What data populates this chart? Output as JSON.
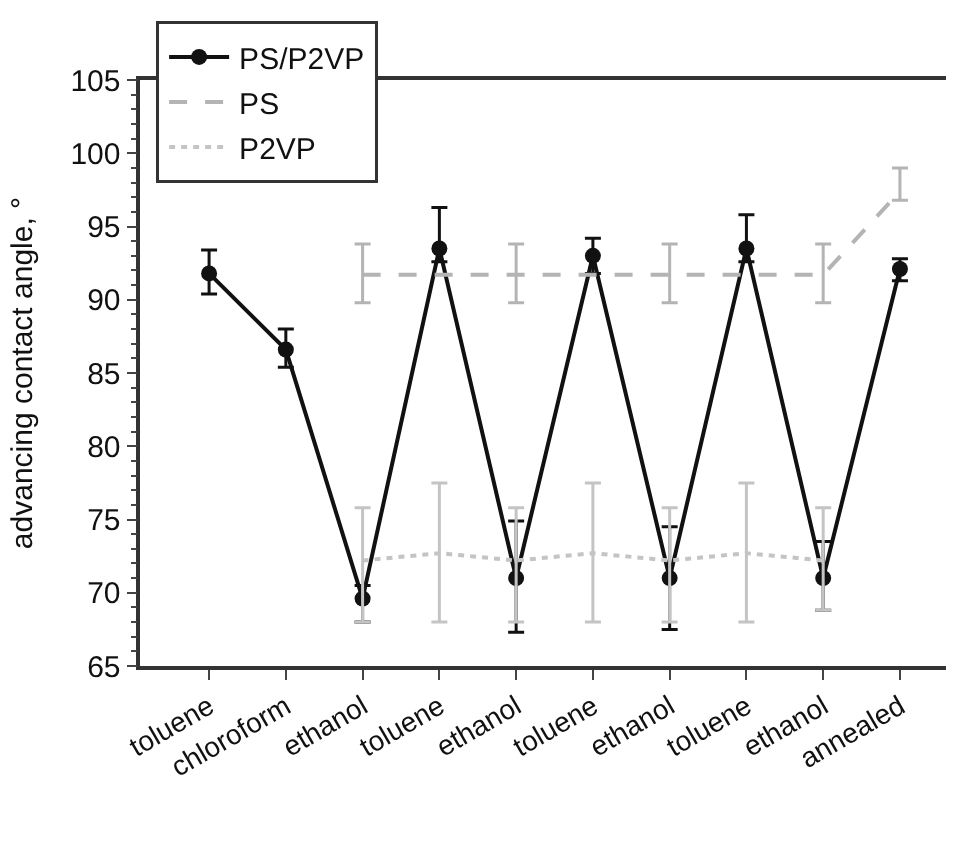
{
  "chart_data": {
    "type": "line",
    "ylabel": "advancing contact angle, °",
    "categories": [
      "toluene",
      "chloroform",
      "ethanol",
      "toluene",
      "ethanol",
      "toluene",
      "ethanol",
      "toluene",
      "ethanol",
      "annealed"
    ],
    "ylim": [
      65,
      105
    ],
    "yticks": [
      65,
      70,
      75,
      80,
      85,
      90,
      95,
      100,
      105
    ],
    "grid": false,
    "legend": "top left",
    "series": [
      {
        "name": "PS/P2VP",
        "color": "#111111",
        "marker": "circle",
        "line_style": "solid",
        "values": [
          91.8,
          86.6,
          69.6,
          93.5,
          71.0,
          93.0,
          71.0,
          93.5,
          71.0,
          92.1
        ],
        "errors": [
          [
            90.4,
            93.4
          ],
          [
            85.4,
            88.0
          ],
          [
            68.0,
            70.5
          ],
          [
            92.6,
            96.3
          ],
          [
            67.3,
            74.9
          ],
          [
            91.8,
            94.2
          ],
          [
            67.5,
            74.5
          ],
          [
            92.6,
            95.8
          ],
          [
            68.8,
            73.5
          ],
          [
            91.3,
            92.8
          ]
        ]
      },
      {
        "name": "PS",
        "color": "#b4b4b4",
        "marker": "none",
        "line_style": "dashed",
        "values": [
          null,
          null,
          91.7,
          null,
          91.7,
          null,
          91.7,
          null,
          91.7,
          97.4
        ],
        "errors": [
          null,
          null,
          [
            89.8,
            93.8
          ],
          null,
          [
            89.8,
            93.8
          ],
          null,
          [
            89.8,
            93.8
          ],
          null,
          [
            89.8,
            93.8
          ],
          [
            96.8,
            99.0
          ]
        ]
      },
      {
        "name": "P2VP",
        "color": "#c4c4c4",
        "marker": "none",
        "line_style": "dotted",
        "values": [
          null,
          null,
          72.2,
          72.7,
          72.2,
          72.7,
          72.2,
          72.7,
          72.2,
          null
        ],
        "errors": [
          null,
          null,
          [
            68.0,
            75.8
          ],
          [
            68.0,
            77.5
          ],
          [
            68.0,
            75.8
          ],
          [
            68.0,
            77.5
          ],
          [
            68.0,
            75.8
          ],
          [
            68.0,
            77.5
          ],
          [
            68.8,
            75.8
          ],
          null
        ]
      }
    ]
  }
}
